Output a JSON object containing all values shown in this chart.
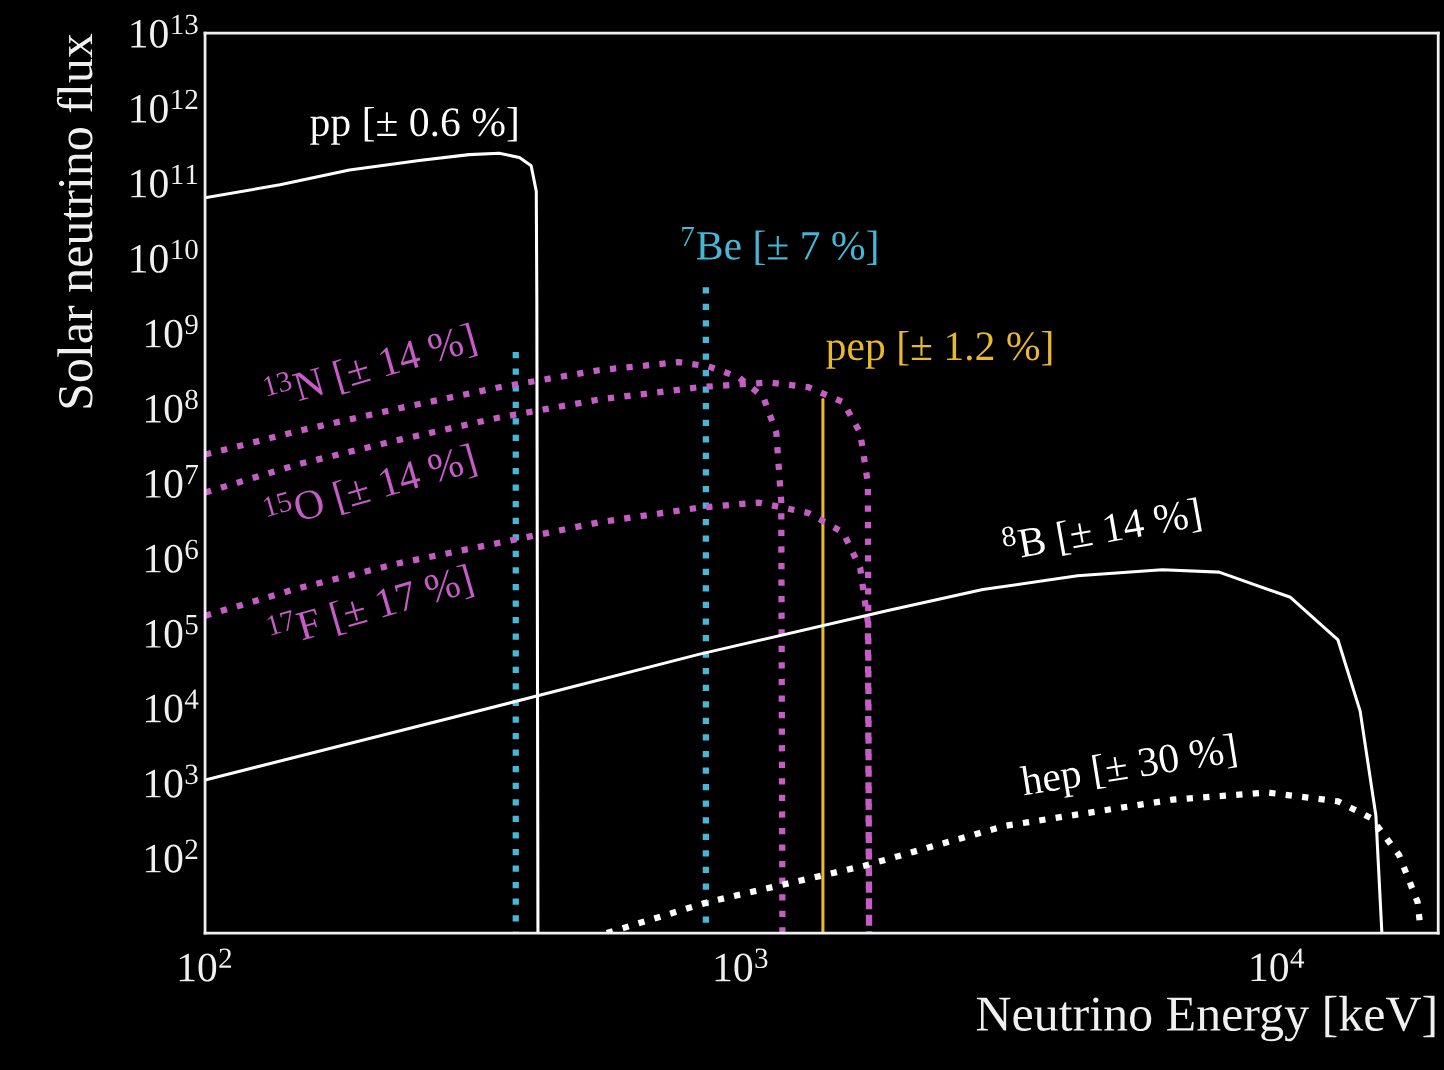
{
  "chart_data": {
    "type": "line",
    "xlabel": "Neutrino Energy [keV]",
    "ylabel": "Solar neutrino flux",
    "log": "xy",
    "grid": false,
    "legend": false,
    "xlim": [
      100,
      20000
    ],
    "ylim": [
      10,
      10000000000000
    ],
    "xticks": [
      {
        "value": 100,
        "label": "10$^{2}$"
      },
      {
        "value": 1000,
        "label": "10$^{3}$"
      },
      {
        "value": 10000,
        "label": "10$^{4}$"
      }
    ],
    "yticks": [
      {
        "value": 100,
        "label": "10$^{2}$"
      },
      {
        "value": 1000,
        "label": "10$^{3}$"
      },
      {
        "value": 10000,
        "label": "10$^{4}$"
      },
      {
        "value": 100000,
        "label": "10$^{5}$"
      },
      {
        "value": 1000000,
        "label": "10$^{6}$"
      },
      {
        "value": 10000000,
        "label": "10$^{7}$"
      },
      {
        "value": 100000000,
        "label": "10$^{8}$"
      },
      {
        "value": 1000000000,
        "label": "10$^{9}$"
      },
      {
        "value": 10000000000,
        "label": "10$^{10}$"
      },
      {
        "value": 100000000000,
        "label": "10$^{11}$"
      },
      {
        "value": 1000000000000,
        "label": "10$^{12}$"
      },
      {
        "value": 10000000000000,
        "label": "10$^{13}$"
      }
    ],
    "series": [
      {
        "name": "pp [± 0.6 %]",
        "color": "#ffffff",
        "line_style": "solid",
        "x": [
          100,
          138,
          186,
          251,
          311,
          354,
          386,
          406,
          415,
          416,
          418
        ],
        "values": [
          64000000000.0,
          95000000000.0,
          150000000000.0,
          200000000000.0,
          240000000000.0,
          250000000000.0,
          220000000000.0,
          170000000000.0,
          78000000000.0,
          2600000000.0,
          10
        ]
      },
      {
        "name": "$^{7}$Be [± 7 %]",
        "color": "#45b8d8",
        "line_style": "dotted",
        "x": [
          860,
          860
        ],
        "values": [
          4100000000.0,
          10
        ]
      },
      {
        "color": "#45b8d8",
        "line_style": "dotted",
        "x": [
          380,
          380
        ],
        "values": [
          560000000.0,
          10
        ]
      },
      {
        "name": "pep [± 1.2 %]",
        "color": "#e8b830",
        "line_style": "solid",
        "x": [
          1422,
          1422
        ],
        "values": [
          10,
          130000000.0
        ]
      },
      {
        "name": "$^{13}$N [± 14 %]",
        "color": "#c65cc6",
        "line_style": "dotted",
        "x": [
          100,
          150,
          231,
          354,
          543,
          765,
          870,
          989,
          1101,
          1164,
          1189,
          1195
        ],
        "values": [
          24000000.0,
          50000000.0,
          100000000.0,
          190000000.0,
          320000000.0,
          410000000.0,
          360000000.0,
          260000000.0,
          140000000.0,
          47000000.0,
          5500000.0,
          10
        ]
      },
      {
        "name": "$^{15}$O [± 14 %]",
        "color": "#c65cc6",
        "line_style": "dotted",
        "x": [
          100,
          150,
          231,
          354,
          543,
          834,
          1125,
          1336,
          1551,
          1669,
          1725,
          1734
        ],
        "values": [
          7500000.0,
          18000000.0,
          38000000.0,
          75000000.0,
          130000000.0,
          190000000.0,
          220000000.0,
          190000000.0,
          120000000.0,
          47000000.0,
          10000000.0,
          10
        ]
      },
      {
        "name": "$^{17}$F [± 17 %]",
        "color": "#c65cc6",
        "line_style": "dotted",
        "x": [
          100,
          150,
          231,
          354,
          543,
          834,
          1078,
          1336,
          1551,
          1669,
          1725,
          1734
        ],
        "values": [
          170000.0,
          400000.0,
          860000.0,
          1600000.0,
          3000000.0,
          4700000.0,
          5500000.0,
          4000000.0,
          2200000.0,
          740000.0,
          140000.0,
          10
        ]
      },
      {
        "name": "$^{8}$B [± 14 %]",
        "color": "#ffffff",
        "line_style": "solid",
        "x": [
          100,
          286,
          834,
          1881,
          2826,
          4246,
          6109,
          7800,
          10600,
          13000,
          14300,
          15300,
          15700
        ],
        "values": [
          1100.0,
          7300.0,
          52000.0,
          200000.0,
          380000.0,
          580000.0,
          700000.0,
          650000.0,
          300000.0,
          81000.0,
          9100.0,
          370,
          10
        ]
      },
      {
        "name": "hep [± 30 %]",
        "color": "#ffffff",
        "line_style": "dotted",
        "x": [
          562,
          870,
          1700,
          3120,
          6380,
          9580,
          13000,
          15000,
          16900,
          18300,
          18500
        ],
        "values": [
          10,
          26,
          79,
          270,
          600,
          750,
          570,
          340,
          110,
          26,
          13
        ]
      }
    ]
  }
}
